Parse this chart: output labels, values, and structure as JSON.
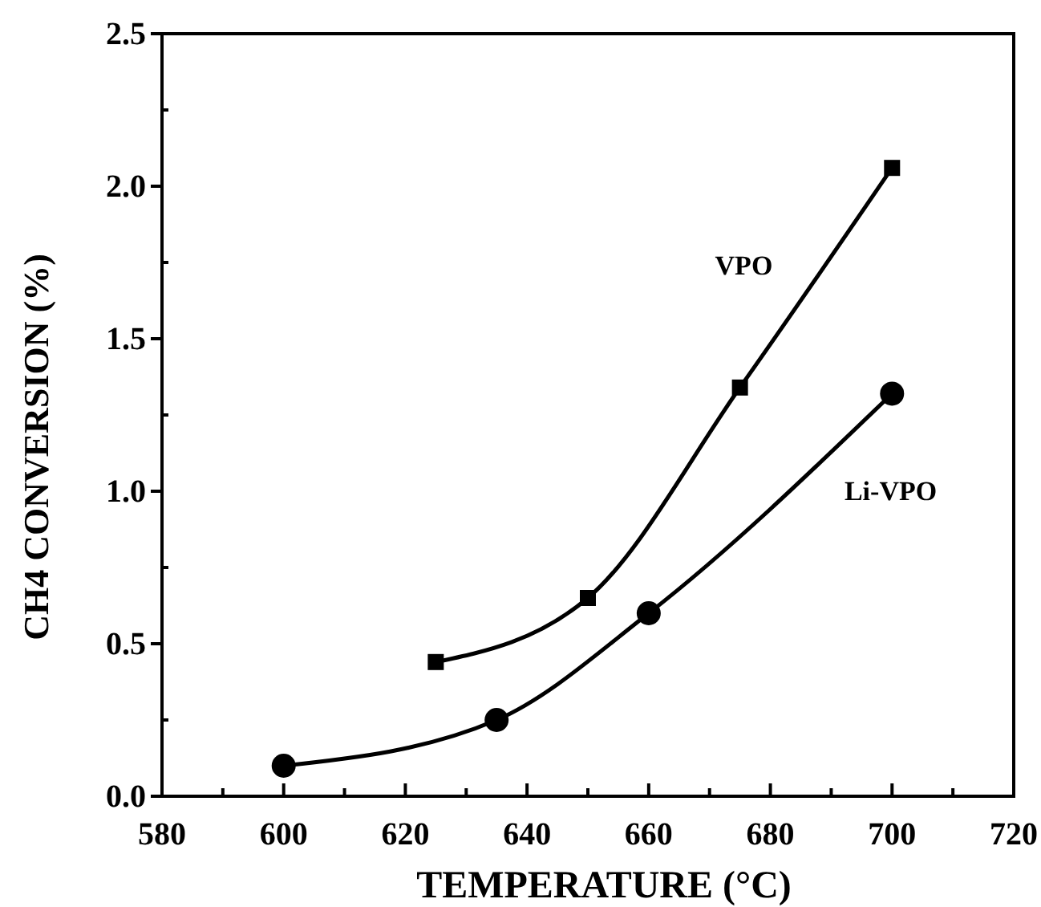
{
  "chart_data": {
    "type": "line",
    "xlabel": "TEMPERATURE (°C)",
    "ylabel": "CH4 CONVERSION (%)",
    "xlim": [
      580,
      720
    ],
    "xticks": [
      580,
      {
        "value": 590,
        "label": null
      },
      600,
      {
        "value": 610,
        "label": null
      },
      620,
      {
        "value": 630,
        "label": null
      },
      640,
      {
        "value": 650,
        "label": null
      },
      660,
      {
        "value": 670,
        "label": null
      },
      680,
      {
        "value": 690,
        "label": null
      },
      700,
      {
        "value": 710,
        "label": null
      },
      720
    ],
    "ylim": [
      0,
      2.5
    ],
    "yticks": [
      "0.0",
      {
        "value": 0.25,
        "label": null
      },
      {
        "value": 0.5,
        "label": "0.5"
      },
      {
        "value": 0.75,
        "label": null
      },
      {
        "value": 1,
        "label": "1.0"
      },
      {
        "value": 1.25,
        "label": null
      },
      {
        "value": 1.5,
        "label": "1.5"
      },
      {
        "value": 1.75,
        "label": null
      },
      {
        "value": 2,
        "label": "2.0"
      },
      {
        "value": 2.25,
        "label": null
      },
      {
        "value": 2.5,
        "label": "2.5"
      }
    ],
    "grid": false,
    "line_style": "solid",
    "series": [
      {
        "name": "VPO",
        "color": "#000000",
        "marker": "square",
        "x": [
          625,
          650,
          675,
          700
        ],
        "values": [
          0.44,
          0.65,
          1.34,
          2.06
        ]
      },
      {
        "name": "Li-VPO",
        "color": "#000000",
        "marker": "circle",
        "x": [
          600,
          635,
          660,
          700
        ],
        "values": [
          0.1,
          0.25,
          0.6,
          1.32
        ]
      }
    ]
  }
}
